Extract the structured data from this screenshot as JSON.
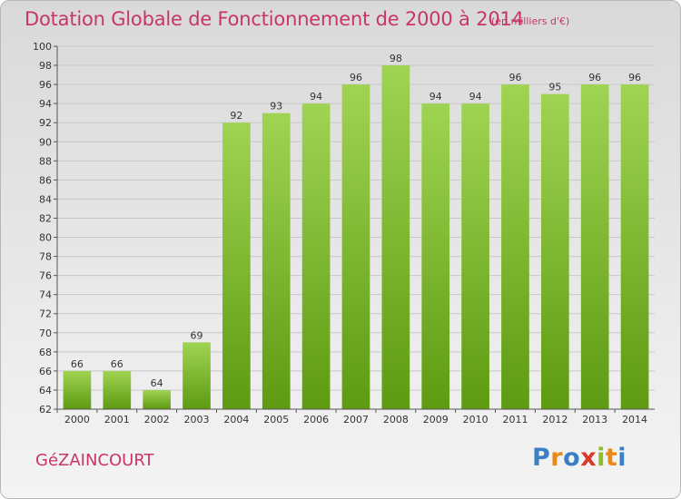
{
  "header": {
    "title": "Dotation Globale de Fonctionnement de 2000 à 2014",
    "subtitle": "(en milliers d'€)"
  },
  "footer": {
    "commune": "GéZAINCOURT",
    "logo_text": "Proxiti",
    "logo_letters": [
      {
        "char": "P",
        "color": "#3b7fc4"
      },
      {
        "char": "r",
        "color": "#e88a1a"
      },
      {
        "char": "o",
        "color": "#3b7fc4"
      },
      {
        "char": "x",
        "color": "#d93a2b"
      },
      {
        "char": "i",
        "color": "#8bbf2a"
      },
      {
        "char": "t",
        "color": "#e88a1a"
      },
      {
        "char": "i",
        "color": "#3b7fc4"
      }
    ]
  },
  "colors": {
    "bar_top": "#9fd453",
    "bar_bottom": "#5e9a12",
    "grid": "#c8c8c8",
    "title": "#c8356a"
  },
  "chart_data": {
    "type": "bar",
    "title": "Dotation Globale de Fonctionnement de 2000 à 2014",
    "subtitle": "(en milliers d'€)",
    "categories": [
      "2000",
      "2001",
      "2002",
      "2003",
      "2004",
      "2005",
      "2006",
      "2007",
      "2008",
      "2009",
      "2010",
      "2011",
      "2012",
      "2013",
      "2014"
    ],
    "values": [
      66,
      66,
      64,
      69,
      92,
      93,
      94,
      96,
      98,
      94,
      94,
      96,
      95,
      96,
      96
    ],
    "xlabel": "",
    "ylabel": "",
    "ylim": [
      62,
      100
    ],
    "yticks": [
      62,
      64,
      66,
      68,
      70,
      72,
      74,
      76,
      78,
      80,
      82,
      84,
      86,
      88,
      90,
      92,
      94,
      96,
      98,
      100
    ],
    "grid": true,
    "legend": "none"
  }
}
